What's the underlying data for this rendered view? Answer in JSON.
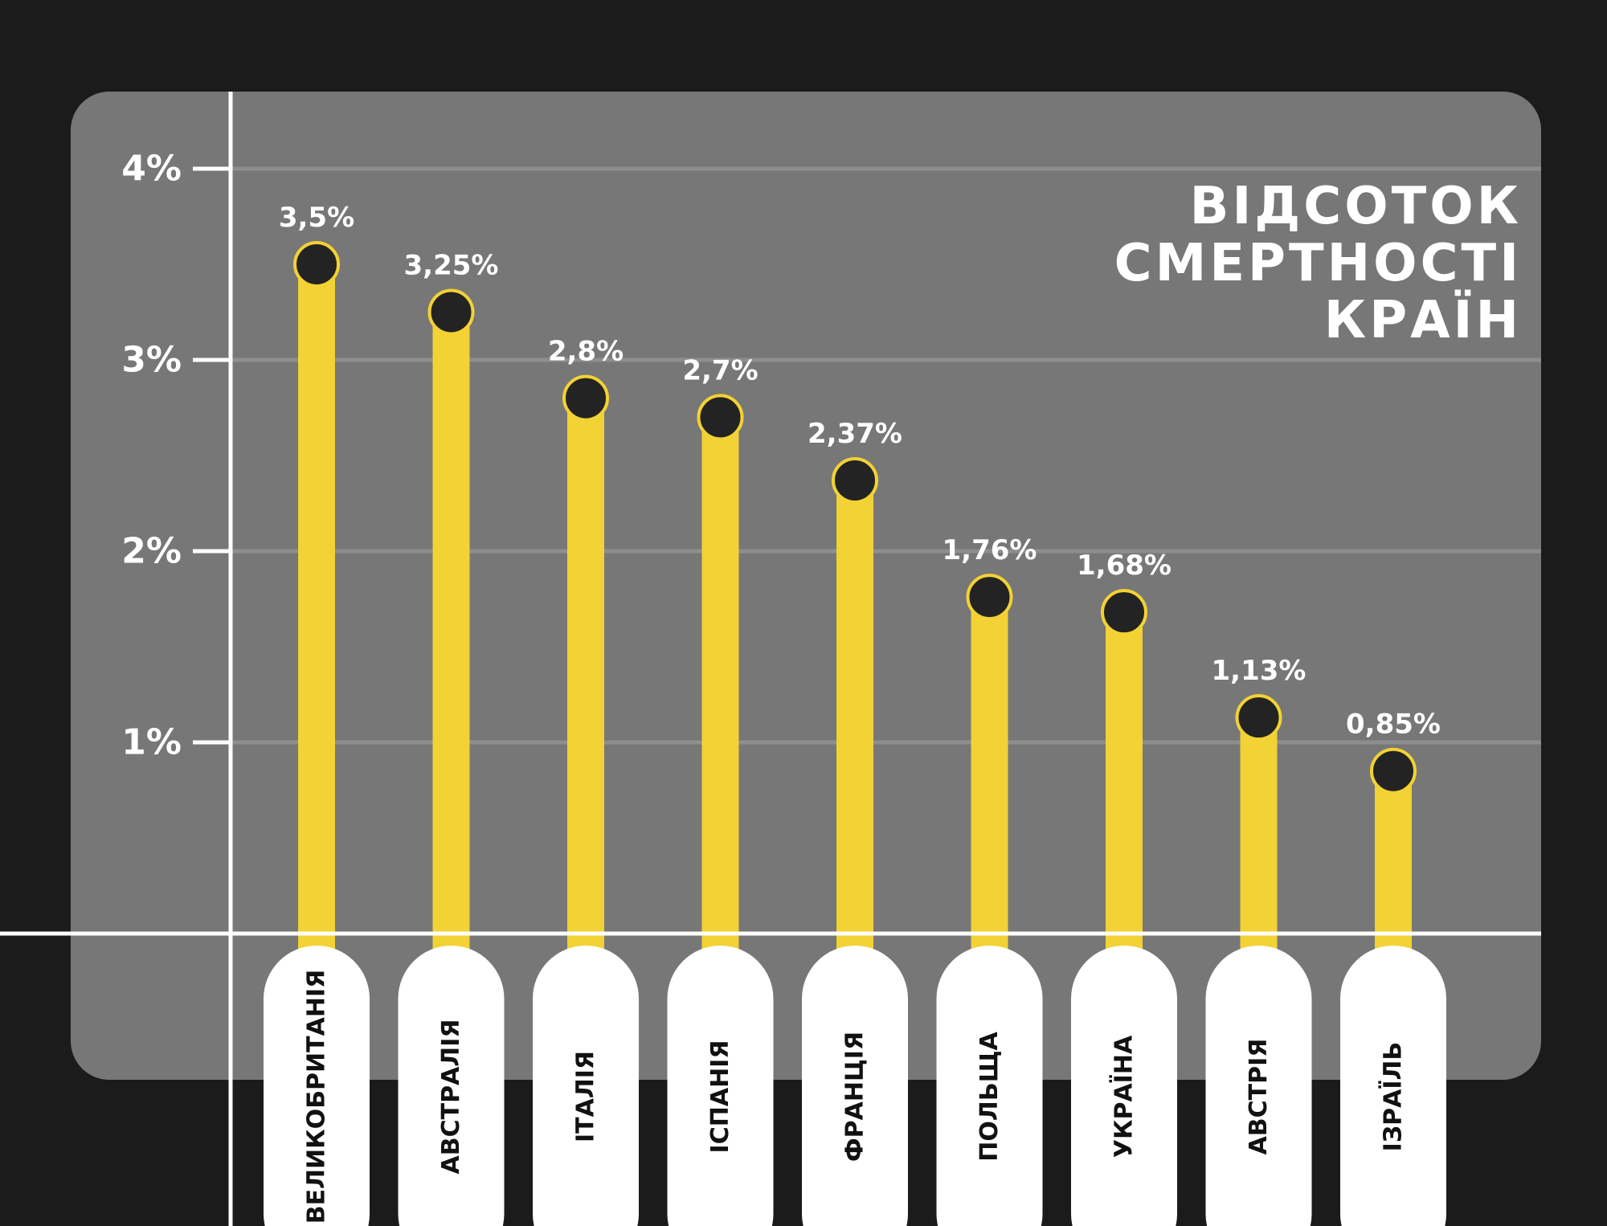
{
  "title_lines": [
    "ВІДСОТОК",
    "СМЕРТНОСТІ",
    "КРАЇН"
  ],
  "chart_data": {
    "type": "bar",
    "style": "lollipop",
    "categories": [
      "ВЕЛИКОБРИТАНІЯ",
      "АВСТРАЛІЯ",
      "ІТАЛІЯ",
      "ІСПАНІЯ",
      "ФРАНЦІЯ",
      "ПОЛЬЩА",
      "УКРАЇНА",
      "АВСТРІЯ",
      "ІЗРАЇЛЬ"
    ],
    "values": [
      3.5,
      3.25,
      2.8,
      2.7,
      2.37,
      1.76,
      1.68,
      1.13,
      0.85
    ],
    "value_labels": [
      "3,5%",
      "3,25%",
      "2,8%",
      "2,7%",
      "2,37%",
      "1,76%",
      "1,68%",
      "1,13%",
      "0,85%"
    ],
    "ylim": [
      0,
      4
    ],
    "yticks": [
      1,
      2,
      3,
      4
    ],
    "ytick_labels": [
      "1%",
      "2%",
      "3%",
      "4%"
    ],
    "grid": true,
    "colors": {
      "background": "#1b1b1b",
      "panel": "#777777",
      "bar": "#f2d234",
      "marker": "#232323",
      "axis": "#ffffff",
      "gridline": "#8e8e8e",
      "label_pill": "#ffffff",
      "text": "#ffffff",
      "category_text": "#111111"
    }
  }
}
